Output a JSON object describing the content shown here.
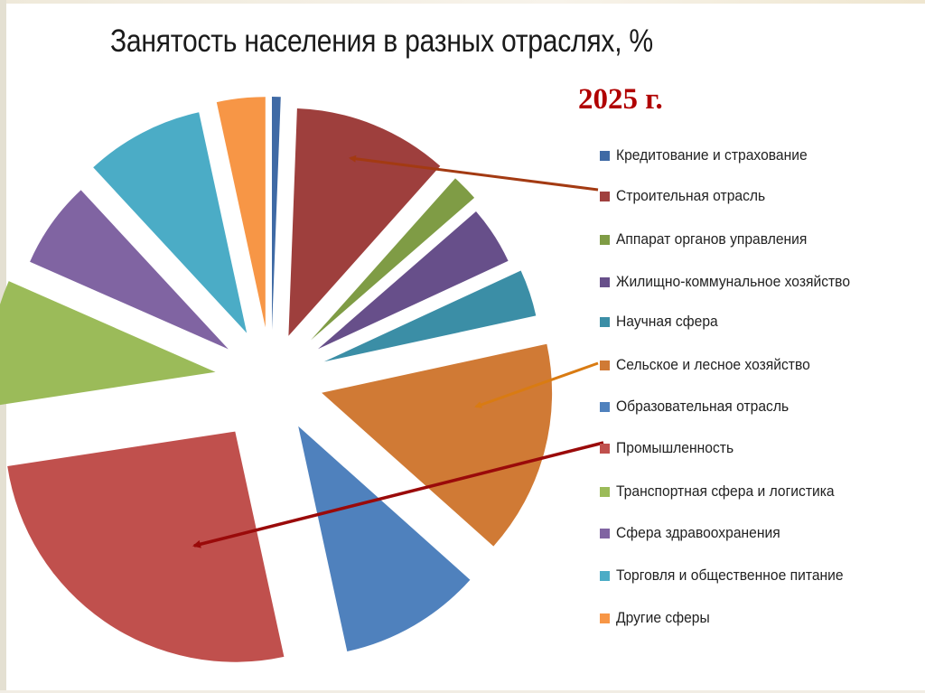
{
  "chart_data": {
    "type": "pie",
    "title": "Занятость населения в разных отраслях, %",
    "subtitle": "2025 г.",
    "legend_position": "right",
    "exploded": true,
    "categories": [
      "Кредитование и страхование",
      "Строительная отрасль",
      "Аппарат органов управления",
      "Жилищно-коммунальное хозяйство",
      "Научная сфера",
      "Сельское и лесное хозяйство",
      "Образовательная отрасль",
      "Промышленность",
      "Транспортная сфера и логистика",
      "Сфера здравоохранения",
      "Торговля и общественное питание",
      "Другие сферы"
    ],
    "values": [
      0.6,
      11,
      2,
      4.5,
      3.5,
      15,
      10,
      26,
      9,
      6.5,
      8.5,
      3.4
    ],
    "colors": [
      "#3f6aa5",
      "#9e3f3d",
      "#7f9c45",
      "#674f8a",
      "#3b8ea6",
      "#d07a35",
      "#4f81bd",
      "#c0504d",
      "#9bbb59",
      "#8064a2",
      "#4bacc6",
      "#f79646"
    ],
    "annotations": [
      {
        "type": "arrow",
        "from_legend": "Строительная отрасль",
        "to_slice": "Строительная отрасль",
        "color": "#a33a12"
      },
      {
        "type": "arrow",
        "from_legend": "Сельское и лесное хозяйство",
        "to_slice": "Сельское и лесное хозяйство",
        "color": "#d97b12"
      },
      {
        "type": "arrow",
        "from_legend": "Промышленность",
        "to_slice": "Промышленность",
        "color": "#9a0a0a"
      }
    ]
  },
  "slide": {
    "title": "Занятость населения в разных отраслях, %",
    "year_label": "2025 г."
  },
  "legend": [
    {
      "label": "Кредитование и страхование",
      "color": "#3f6aa5"
    },
    {
      "label": "Строительная отрасль",
      "color": "#a0403e"
    },
    {
      "label": "Аппарат органов управления",
      "color": "#7f9c45"
    },
    {
      "label": "Жилищно-коммунальное хозяйство",
      "color": "#674f8a"
    },
    {
      "label": "Научная сфера",
      "color": "#3b8ea6"
    },
    {
      "label": "Сельское и лесное хозяйство",
      "color": "#d07a35"
    },
    {
      "label": "Образовательная отрасль",
      "color": "#4f81bd"
    },
    {
      "label": "Промышленность",
      "color": "#c0504d"
    },
    {
      "label": "Транспортная сфера и логистика",
      "color": "#9bbb59"
    },
    {
      "label": "Сфера здравоохранения",
      "color": "#8064a2"
    },
    {
      "label": "Торговля и общественное питание",
      "color": "#4bacc6"
    },
    {
      "label": "Другие сферы",
      "color": "#f79646"
    }
  ]
}
